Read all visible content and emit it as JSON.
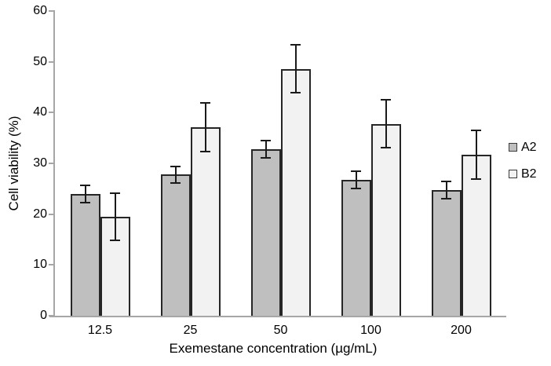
{
  "chart_data": {
    "type": "bar",
    "title": "",
    "xlabel": "Exemestane concentration (µg/mL)",
    "ylabel": "Cell viability (%)",
    "categories": [
      "12.5",
      "25",
      "50",
      "100",
      "200"
    ],
    "series": [
      {
        "name": "A2",
        "fill": "#bfbfbf",
        "values": [
          24.0,
          27.8,
          32.8,
          26.8,
          24.7
        ],
        "errors": [
          1.7,
          1.6,
          1.7,
          1.7,
          1.7
        ]
      },
      {
        "name": "B2",
        "fill": "#f2f2f2",
        "values": [
          19.5,
          37.1,
          48.6,
          37.8,
          31.7
        ],
        "errors": [
          4.7,
          4.8,
          4.7,
          4.7,
          4.8
        ]
      }
    ],
    "ylim": [
      0,
      60
    ],
    "yticks": [
      0,
      10,
      20,
      30,
      40,
      50,
      60
    ],
    "grid": false,
    "legend_position": "right",
    "error_bars": true,
    "axis_color": "#a6a6a6",
    "bar_border_color": "#262626",
    "error_color": "#1a1a1a",
    "text_color": "#000000"
  }
}
